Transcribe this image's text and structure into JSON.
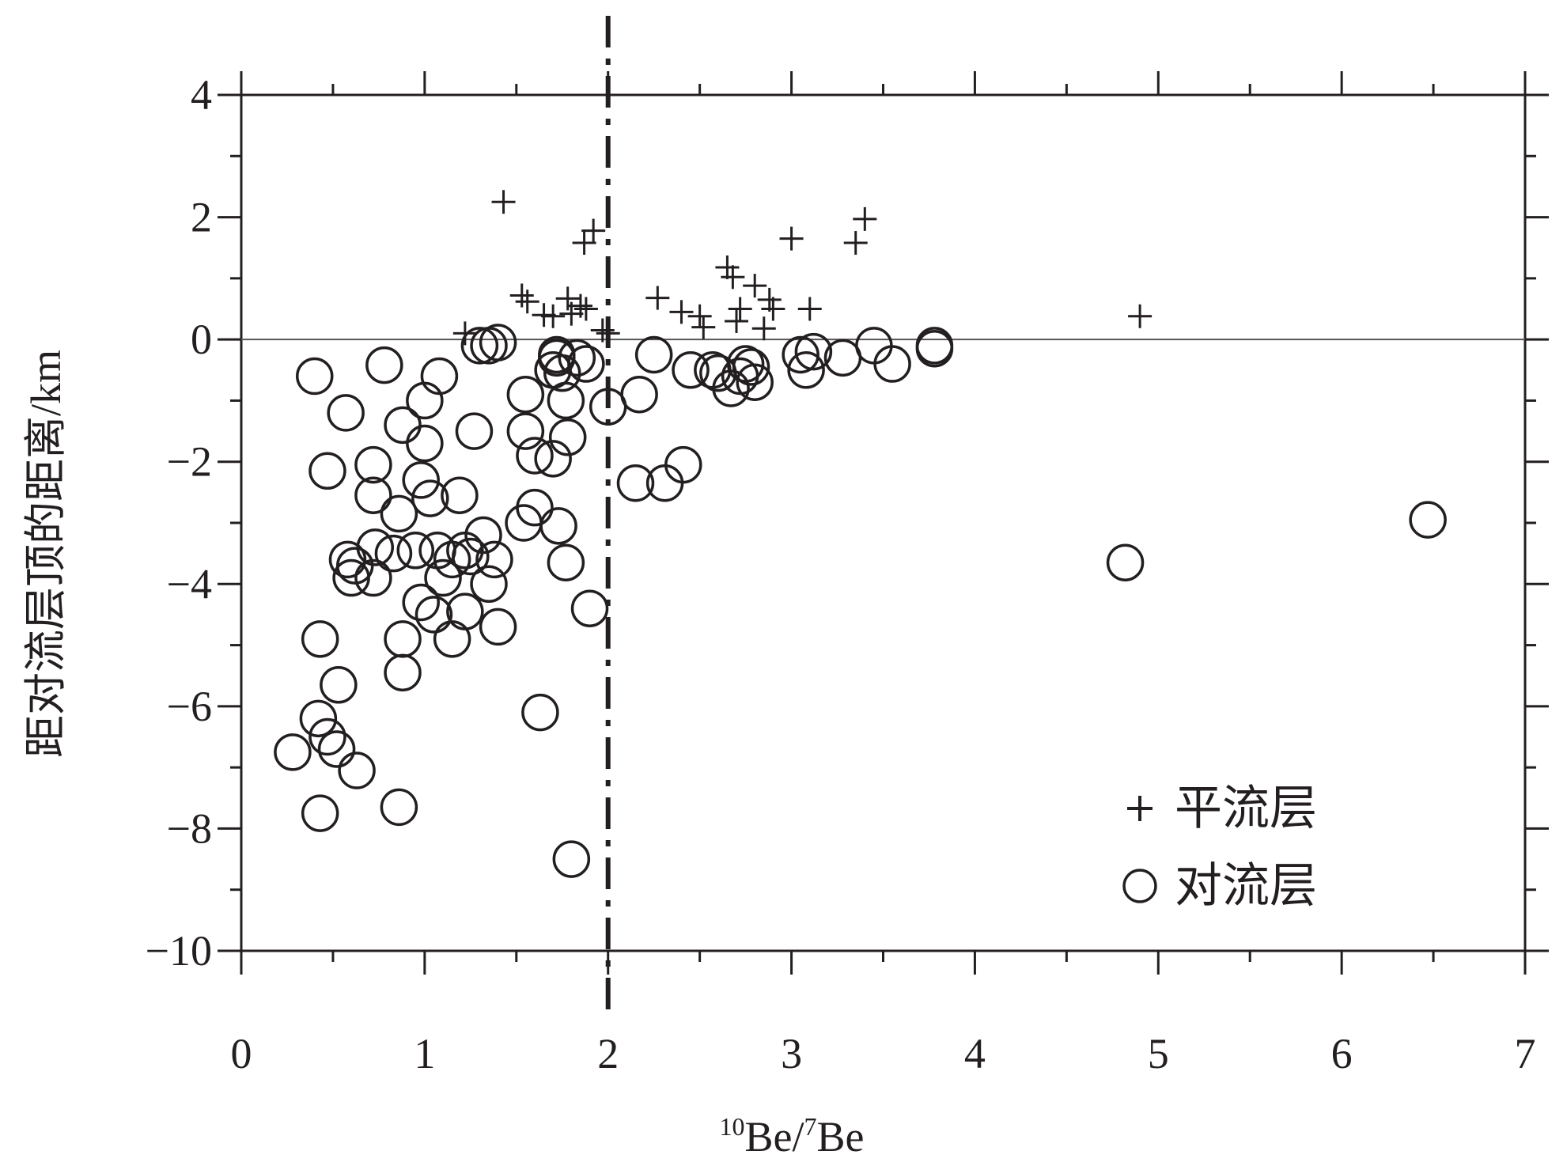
{
  "chart_data": {
    "type": "scatter",
    "xlabel_parts": [
      "10",
      "Be/",
      "7",
      "Be"
    ],
    "ylabel": "距对流层顶的距离/km",
    "xlim": [
      0,
      7
    ],
    "ylim": [
      -10,
      4
    ],
    "xticks": [
      0,
      1,
      2,
      3,
      4,
      5,
      6,
      7
    ],
    "xtick_labels": [
      "0",
      "1",
      "2",
      "3",
      "4",
      "5",
      "6",
      "7"
    ],
    "yticks": [
      4,
      2,
      0,
      -2,
      -4,
      -6,
      -8,
      -10
    ],
    "ytick_labels": [
      "4",
      "2",
      "0",
      "−2",
      "−4",
      "−6",
      "−8",
      "−10"
    ],
    "reference_lines": {
      "horizontal_y": 0,
      "vertical_x_dashdot": 2
    },
    "legend_position": "bottom-right",
    "colors": {
      "ink": "#231f20"
    },
    "series": [
      {
        "name": "平流层",
        "marker": "plus",
        "points": [
          [
            1.43,
            2.25
          ],
          [
            1.92,
            1.78
          ],
          [
            1.87,
            1.58
          ],
          [
            3.0,
            1.65
          ],
          [
            3.35,
            1.58
          ],
          [
            3.4,
            1.97
          ],
          [
            2.65,
            1.18
          ],
          [
            2.68,
            1.02
          ],
          [
            2.8,
            0.88
          ],
          [
            2.27,
            0.68
          ],
          [
            1.53,
            0.72
          ],
          [
            1.56,
            0.62
          ],
          [
            1.78,
            0.67
          ],
          [
            1.85,
            0.55
          ],
          [
            1.65,
            0.4
          ],
          [
            1.7,
            0.38
          ],
          [
            1.8,
            0.42
          ],
          [
            1.88,
            0.5
          ],
          [
            2.4,
            0.45
          ],
          [
            2.5,
            0.38
          ],
          [
            2.52,
            0.2
          ],
          [
            2.7,
            0.3
          ],
          [
            2.72,
            0.5
          ],
          [
            2.9,
            0.5
          ],
          [
            2.88,
            0.65
          ],
          [
            3.1,
            0.5
          ],
          [
            2.85,
            0.18
          ],
          [
            1.22,
            0.1
          ],
          [
            1.97,
            0.15
          ],
          [
            2.0,
            0.1
          ],
          [
            4.9,
            0.38
          ]
        ]
      },
      {
        "name": "对流层",
        "marker": "circle",
        "points": [
          [
            1.3,
            -0.1
          ],
          [
            1.35,
            -0.1
          ],
          [
            1.4,
            -0.05
          ],
          [
            1.72,
            -0.25
          ],
          [
            1.83,
            -0.3
          ],
          [
            1.88,
            -0.4
          ],
          [
            2.25,
            -0.25
          ],
          [
            0.4,
            -0.6
          ],
          [
            0.78,
            -0.42
          ],
          [
            1.08,
            -0.6
          ],
          [
            1.0,
            -1.0
          ],
          [
            0.57,
            -1.2
          ],
          [
            1.7,
            -0.5
          ],
          [
            1.72,
            -0.3
          ],
          [
            1.75,
            -0.55
          ],
          [
            1.55,
            -0.9
          ],
          [
            1.77,
            -1.0
          ],
          [
            2.0,
            -1.1
          ],
          [
            2.17,
            -0.9
          ],
          [
            0.88,
            -1.4
          ],
          [
            1.0,
            -1.7
          ],
          [
            1.27,
            -1.5
          ],
          [
            1.55,
            -1.5
          ],
          [
            1.6,
            -1.9
          ],
          [
            1.78,
            -1.6
          ],
          [
            1.7,
            -1.95
          ],
          [
            0.47,
            -2.15
          ],
          [
            0.72,
            -2.05
          ],
          [
            0.72,
            -2.55
          ],
          [
            0.98,
            -2.3
          ],
          [
            1.03,
            -2.6
          ],
          [
            1.19,
            -2.55
          ],
          [
            0.86,
            -2.85
          ],
          [
            1.6,
            -2.75
          ],
          [
            1.54,
            -3.0
          ],
          [
            1.73,
            -3.05
          ],
          [
            2.15,
            -2.35
          ],
          [
            2.31,
            -2.35
          ],
          [
            2.41,
            -2.05
          ],
          [
            0.58,
            -3.6
          ],
          [
            0.62,
            -3.7
          ],
          [
            0.6,
            -3.9
          ],
          [
            0.72,
            -3.9
          ],
          [
            0.73,
            -3.4
          ],
          [
            0.83,
            -3.5
          ],
          [
            0.95,
            -3.45
          ],
          [
            1.07,
            -3.45
          ],
          [
            1.15,
            -3.6
          ],
          [
            1.22,
            -3.45
          ],
          [
            1.25,
            -3.55
          ],
          [
            1.32,
            -3.2
          ],
          [
            1.38,
            -3.6
          ],
          [
            1.35,
            -4.0
          ],
          [
            1.1,
            -3.9
          ],
          [
            1.77,
            -3.65
          ],
          [
            0.98,
            -4.3
          ],
          [
            1.05,
            -4.5
          ],
          [
            1.22,
            -4.45
          ],
          [
            1.15,
            -4.9
          ],
          [
            1.4,
            -4.7
          ],
          [
            0.88,
            -4.9
          ],
          [
            0.43,
            -4.9
          ],
          [
            0.53,
            -5.65
          ],
          [
            0.88,
            -5.45
          ],
          [
            1.9,
            -4.4
          ],
          [
            1.63,
            -6.1
          ],
          [
            0.42,
            -6.2
          ],
          [
            0.47,
            -6.5
          ],
          [
            0.52,
            -6.7
          ],
          [
            0.28,
            -6.75
          ],
          [
            0.63,
            -7.05
          ],
          [
            0.43,
            -7.75
          ],
          [
            0.86,
            -7.65
          ],
          [
            1.8,
            -8.5
          ],
          [
            2.45,
            -0.5
          ],
          [
            2.57,
            -0.5
          ],
          [
            2.6,
            -0.55
          ],
          [
            2.67,
            -0.8
          ],
          [
            2.72,
            -0.6
          ],
          [
            2.75,
            -0.4
          ],
          [
            2.8,
            -0.7
          ],
          [
            2.78,
            -0.45
          ],
          [
            3.05,
            -0.25
          ],
          [
            3.08,
            -0.5
          ],
          [
            3.12,
            -0.2
          ],
          [
            3.28,
            -0.3
          ],
          [
            3.45,
            -0.1
          ],
          [
            3.55,
            -0.4
          ],
          [
            3.78,
            -0.15
          ],
          [
            3.78,
            -0.1
          ],
          [
            4.82,
            -3.65
          ],
          [
            6.47,
            -2.95
          ]
        ]
      }
    ]
  }
}
